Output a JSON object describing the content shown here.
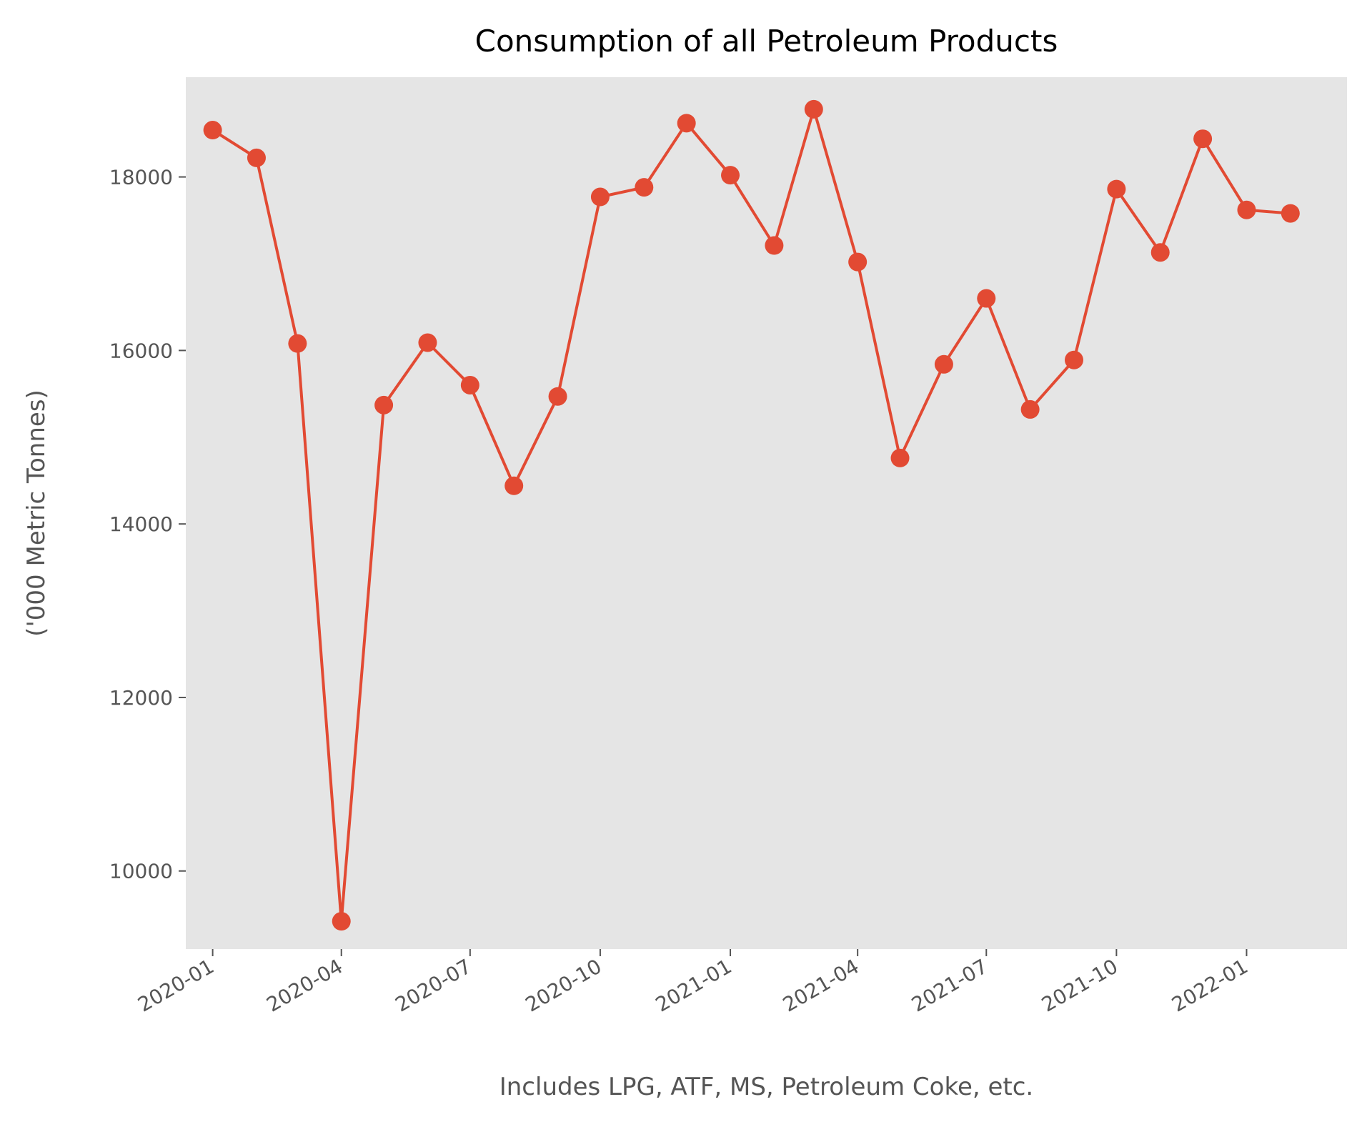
{
  "chart_data": {
    "type": "line",
    "title": "Consumption of all Petroleum Products",
    "xlabel": "Includes LPG, ATF, MS, Petroleum Coke, etc.",
    "ylabel": "('000 Metric Tonnes)",
    "x": [
      "2020-01",
      "2020-02",
      "2020-03",
      "2020-04",
      "2020-05",
      "2020-06",
      "2020-07",
      "2020-08",
      "2020-09",
      "2020-10",
      "2020-11",
      "2020-12",
      "2021-01",
      "2021-02",
      "2021-03",
      "2021-04",
      "2021-05",
      "2021-06",
      "2021-07",
      "2021-08",
      "2021-09",
      "2021-10",
      "2021-11",
      "2021-12",
      "2022-01",
      "2022-02"
    ],
    "series": [
      {
        "values": [
          18540,
          18220,
          16080,
          9420,
          15370,
          16090,
          15600,
          14440,
          15470,
          17770,
          17880,
          18620,
          18020,
          17210,
          18780,
          17020,
          14760,
          15840,
          16600,
          15320,
          15890,
          17860,
          17130,
          18440,
          17620,
          17580
        ]
      }
    ],
    "x_ticks": [
      "2020-01",
      "2020-04",
      "2020-07",
      "2020-10",
      "2021-01",
      "2021-04",
      "2021-07",
      "2021-10",
      "2022-01"
    ],
    "y_ticks": [
      10000,
      12000,
      14000,
      16000,
      18000
    ],
    "ylim": [
      9100,
      19150
    ],
    "xlim": [
      "2019-12-13",
      "2022-03-13"
    ],
    "grid": false,
    "legend": "none",
    "colors": {
      "line": "#e24a33",
      "plot_background": "#e5e5e5",
      "text": "#555555"
    }
  }
}
